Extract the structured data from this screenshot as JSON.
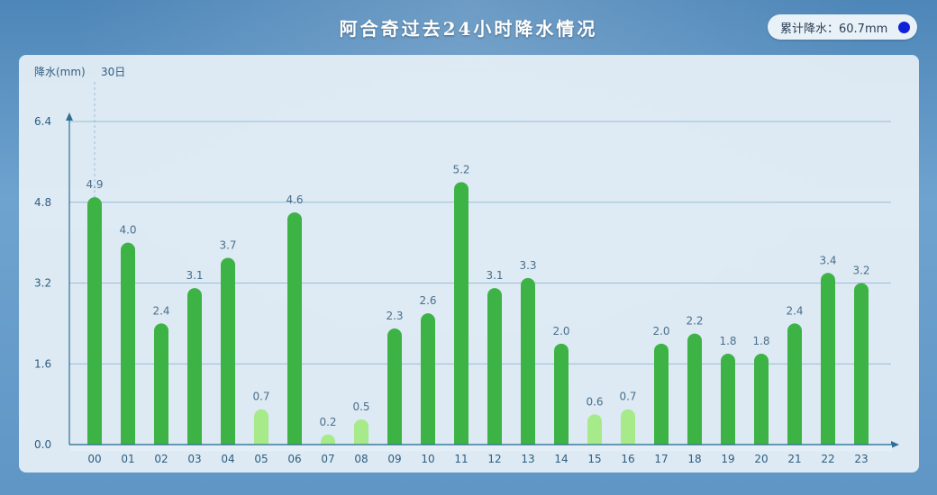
{
  "title": "阿合奇过去24小时降水情况",
  "summary": {
    "total_label": "累计降水：60.7mm"
  },
  "chart_data": {
    "type": "bar",
    "title": "阿合奇过去24小时降水情况",
    "ylabel": "降水(mm)",
    "date_marker": "30日",
    "ylim": [
      0,
      6.4
    ],
    "yticks": [
      "0.0",
      "1.6",
      "3.2",
      "4.8",
      "6.4"
    ],
    "grid": true,
    "categories": [
      "00",
      "01",
      "02",
      "03",
      "04",
      "05",
      "06",
      "07",
      "08",
      "09",
      "10",
      "11",
      "12",
      "13",
      "14",
      "15",
      "16",
      "17",
      "18",
      "19",
      "20",
      "21",
      "22",
      "23"
    ],
    "values": [
      4.9,
      4.0,
      2.4,
      3.1,
      3.7,
      0.7,
      4.6,
      0.2,
      0.5,
      2.3,
      2.6,
      5.2,
      3.1,
      3.3,
      2.0,
      0.6,
      0.7,
      2.0,
      2.2,
      1.8,
      1.8,
      2.4,
      3.4,
      3.2
    ],
    "labels": [
      "4.9",
      "4.0",
      "2.4",
      "3.1",
      "3.7",
      "0.7",
      "4.6",
      "0.2",
      "0.5",
      "2.3",
      "2.6",
      "5.2",
      "3.1",
      "3.3",
      "2.0",
      "0.6",
      "0.7",
      "2.0",
      "2.2",
      "1.8",
      "1.8",
      "2.4",
      "3.4",
      "3.2"
    ],
    "colors": {
      "heavy": "#3db346",
      "light": "#a6ea8a",
      "axis": "#2f6f96",
      "grid": "#6ea0c4"
    }
  }
}
